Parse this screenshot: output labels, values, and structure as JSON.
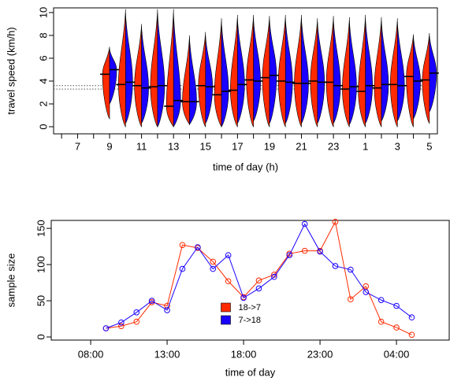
{
  "chart_data": [
    {
      "type": "beanplot",
      "ylabel": "travel speed (km/h)",
      "xlabel": "time of day (h)",
      "categories": [
        null,
        "7",
        null,
        "9",
        null,
        "11",
        null,
        "13",
        null,
        "15",
        null,
        "17",
        null,
        "19",
        null,
        "21",
        null,
        "23",
        null,
        "1",
        null,
        "3",
        null,
        "5"
      ],
      "ylim": [
        -0.62,
        10.41
      ],
      "yticks": [
        0,
        2,
        4,
        6,
        8,
        10
      ],
      "hlines": [
        3.6,
        3.3
      ],
      "series": [
        {
          "color": "#ff2a00",
          "values": [
            null,
            null,
            null,
            4.6,
            3.7,
            3.6,
            3.5,
            1.8,
            2.2,
            3.6,
            2.8,
            3.2,
            4.1,
            4.3,
            4.0,
            3.8,
            4.0,
            3.9,
            3.3,
            3.1,
            3.4,
            3.7,
            4.4,
            4.1
          ],
          "min": [
            null,
            null,
            null,
            0.7,
            0,
            0,
            0,
            0,
            0.2,
            0,
            0,
            0,
            0,
            0,
            0,
            0,
            0,
            0,
            0,
            0,
            0,
            0,
            0,
            0.3
          ],
          "max": [
            null,
            null,
            null,
            7,
            10.3,
            9,
            10.3,
            10.3,
            8,
            8.3,
            9.5,
            9.8,
            9.8,
            9.7,
            9.8,
            9.8,
            9.5,
            9.7,
            9.6,
            9.8,
            9.6,
            9.5,
            8.1,
            8.2
          ]
        },
        {
          "color": "#1a00ff",
          "values": [
            null,
            null,
            null,
            5.0,
            3.9,
            3.4,
            3.6,
            2.3,
            2.2,
            3.5,
            3.1,
            3.7,
            4.0,
            4.5,
            3.9,
            3.8,
            3.9,
            3.6,
            3.5,
            3.6,
            3.7,
            3.6,
            4.0,
            4.7
          ],
          "min": [
            null,
            null,
            null,
            2,
            0.3,
            0.3,
            0,
            0,
            0.2,
            0.3,
            0,
            0.3,
            0.5,
            0.3,
            0.3,
            0.3,
            0.3,
            0.3,
            0.2,
            0.3,
            0.5,
            0.5,
            0.7,
            1.3
          ],
          "max": [
            null,
            null,
            null,
            6.8,
            10,
            8.8,
            10,
            10,
            7.8,
            8,
            9.2,
            9.5,
            9.5,
            9.4,
            9.5,
            9.5,
            9.2,
            9.4,
            9.3,
            9.5,
            9.3,
            9.2,
            7.9,
            8
          ]
        }
      ]
    },
    {
      "type": "line",
      "ylabel": "sample size",
      "xlabel": "time of day",
      "x": [
        9,
        10,
        11,
        12,
        13,
        14,
        15,
        16,
        17,
        18,
        19,
        20,
        21,
        22,
        23,
        24,
        25,
        26,
        27,
        28,
        29
      ],
      "xlim": [
        5.42,
        31.45
      ],
      "xticks": [
        {
          "value": 8,
          "label": "08:00"
        },
        {
          "value": 13,
          "label": "13:00"
        },
        {
          "value": 18,
          "label": "18:00"
        },
        {
          "value": 23,
          "label": "23:00"
        },
        {
          "value": 28,
          "label": "04:00"
        }
      ],
      "ylim": [
        -4.3,
        161
      ],
      "yticks": [
        0,
        50,
        100,
        150
      ],
      "legend": "bottom",
      "series": [
        {
          "name": "18->7",
          "color": "#ff2a00",
          "values": [
            12,
            15,
            21,
            48,
            43,
            127,
            123,
            104,
            77,
            55,
            78,
            86,
            115,
            119,
            119,
            159,
            52,
            70,
            21,
            13,
            3
          ]
        },
        {
          "name": "7->18",
          "color": "#1a00ff",
          "values": [
            12,
            20,
            34,
            50,
            37,
            94,
            124,
            94,
            113,
            54,
            67,
            83,
            113,
            156,
            118,
            98,
            93,
            62,
            51,
            43,
            27
          ]
        }
      ]
    }
  ]
}
